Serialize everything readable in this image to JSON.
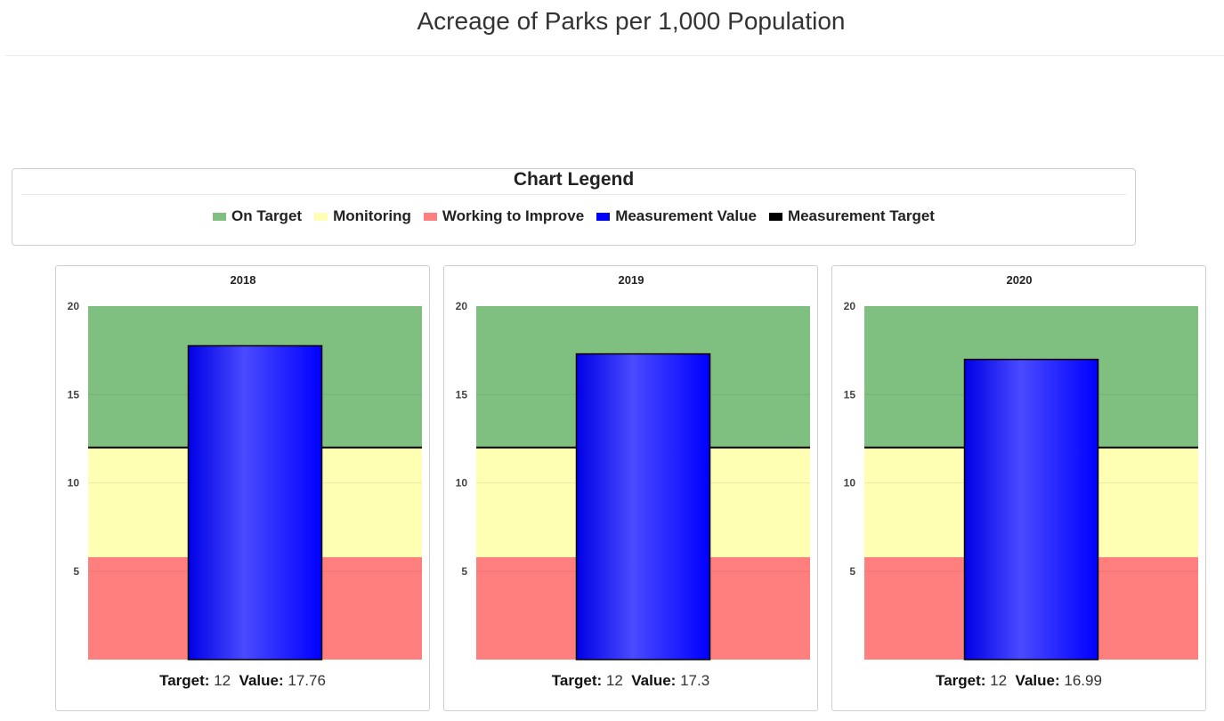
{
  "page": {
    "title": "Acreage of Parks per 1,000 Population"
  },
  "legend": {
    "title": "Chart Legend",
    "items": [
      {
        "label": "On Target",
        "color": "#7fbf7f"
      },
      {
        "label": "Monitoring",
        "color": "#ffffb3"
      },
      {
        "label": "Working to Improve",
        "color": "#ff7f7f"
      },
      {
        "label": "Measurement Value",
        "color": "#0000ff"
      },
      {
        "label": "Measurement Target",
        "color": "#000000"
      }
    ]
  },
  "labels": {
    "target": "Target:",
    "value": "Value:"
  },
  "chart_data": [
    {
      "type": "bar",
      "title": "2018",
      "categories": [
        "2018"
      ],
      "values": [
        17.76
      ],
      "target": 12,
      "value_text": "17.76",
      "target_text": "12",
      "ylim": [
        0,
        20
      ],
      "yticks": [
        5,
        10,
        15,
        20
      ],
      "bands": [
        {
          "name": "Working to Improve",
          "from": 0,
          "to": 5.8,
          "color": "#ff7f7f"
        },
        {
          "name": "Monitoring",
          "from": 5.8,
          "to": 12,
          "color": "#ffffb3"
        },
        {
          "name": "On Target",
          "from": 12,
          "to": 20,
          "color": "#7fbf7f"
        }
      ]
    },
    {
      "type": "bar",
      "title": "2019",
      "categories": [
        "2019"
      ],
      "values": [
        17.3
      ],
      "target": 12,
      "value_text": "17.3",
      "target_text": "12",
      "ylim": [
        0,
        20
      ],
      "yticks": [
        5,
        10,
        15,
        20
      ],
      "bands": [
        {
          "name": "Working to Improve",
          "from": 0,
          "to": 5.8,
          "color": "#ff7f7f"
        },
        {
          "name": "Monitoring",
          "from": 5.8,
          "to": 12,
          "color": "#ffffb3"
        },
        {
          "name": "On Target",
          "from": 12,
          "to": 20,
          "color": "#7fbf7f"
        }
      ]
    },
    {
      "type": "bar",
      "title": "2020",
      "categories": [
        "2020"
      ],
      "values": [
        16.99
      ],
      "target": 12,
      "value_text": "16.99",
      "target_text": "12",
      "ylim": [
        0,
        20
      ],
      "yticks": [
        5,
        10,
        15,
        20
      ],
      "bands": [
        {
          "name": "Working to Improve",
          "from": 0,
          "to": 5.8,
          "color": "#ff7f7f"
        },
        {
          "name": "Monitoring",
          "from": 5.8,
          "to": 12,
          "color": "#ffffb3"
        },
        {
          "name": "On Target",
          "from": 12,
          "to": 20,
          "color": "#7fbf7f"
        }
      ]
    }
  ]
}
